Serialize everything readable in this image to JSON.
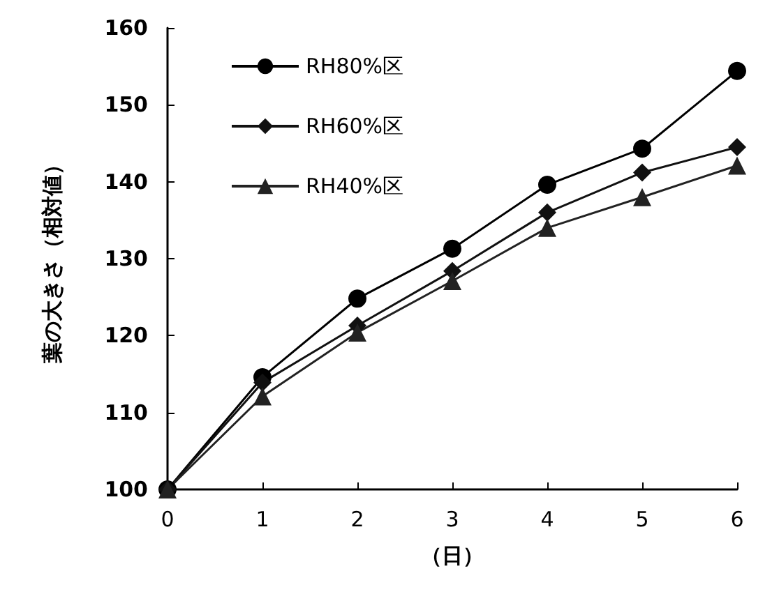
{
  "chart_data": {
    "type": "line",
    "xlabel": "（日）",
    "ylabel": "葉の大きさ（相対値）",
    "categories": [
      "0",
      "1",
      "2",
      "3",
      "4",
      "5",
      "6"
    ],
    "series": [
      {
        "name": "RH80%区",
        "color": "#000000",
        "marker": "circle",
        "values": [
          100,
          114.6,
          124.8,
          131.3,
          139.6,
          144.3,
          154.4
        ]
      },
      {
        "name": "RH60%区",
        "color": "#111111",
        "marker": "diamond",
        "values": [
          100,
          113.9,
          121.3,
          128.4,
          136.0,
          141.2,
          144.5
        ]
      },
      {
        "name": "RH40%区",
        "color": "#222222",
        "marker": "triangle",
        "values": [
          100,
          112.1,
          120.4,
          127.1,
          134.0,
          138.0,
          142.1
        ]
      }
    ],
    "ylim": [
      100,
      160
    ],
    "yticks": [
      100,
      110,
      120,
      130,
      140,
      150,
      160
    ],
    "grid": false,
    "legend": "top left",
    "line_style": "solid"
  }
}
